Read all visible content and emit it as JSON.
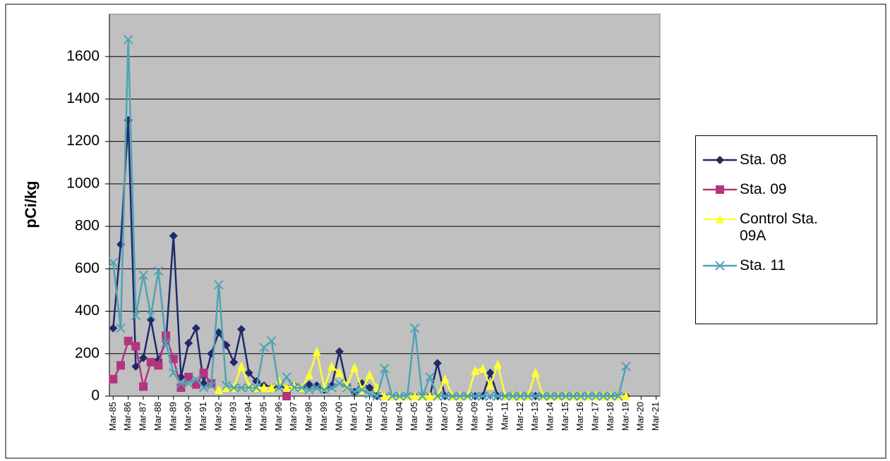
{
  "chart_data": {
    "type": "line",
    "y_label": "pCi/kg",
    "categories": [
      "Mar-85",
      null,
      "Mar-86",
      null,
      "Mar-87",
      null,
      "Mar-88",
      null,
      "Mar-89",
      null,
      "Mar-90",
      null,
      "Mar-91",
      null,
      "Mar-92",
      null,
      "Mar-93",
      null,
      "Mar-94",
      null,
      "Mar-95",
      null,
      "Mar-96",
      null,
      "Mar-97",
      null,
      "Mar-98",
      null,
      "Mar-99",
      null,
      "Mar-00",
      null,
      "Mar-01",
      null,
      "Mar-02",
      null,
      "Mar-03",
      null,
      "Mar-04",
      null,
      "Mar-05",
      null,
      "Mar-06",
      null,
      "Mar-07",
      null,
      "Mar-08",
      null,
      "Mar-09",
      null,
      "Mar-10",
      null,
      "Mar-11",
      null,
      "Mar-12",
      null,
      "Mar-13",
      null,
      "Mar-14",
      null,
      "Mar-15",
      null,
      "Mar-16",
      null,
      "Mar-17",
      null,
      "Mar-18",
      null,
      "Mar-19",
      null,
      "Mar-20",
      null,
      "Mar-21"
    ],
    "series": [
      {
        "name": "Sta. 08",
        "color": "#1f2a6b",
        "marker": "diamond",
        "values": [
          320,
          715,
          1300,
          140,
          180,
          360,
          170,
          260,
          755,
          90,
          250,
          320,
          60,
          200,
          300,
          240,
          160,
          315,
          110,
          70,
          50,
          40,
          50,
          40,
          50,
          40,
          55,
          50,
          30,
          50,
          210,
          50,
          20,
          60,
          40,
          0,
          0,
          0,
          0,
          0,
          0,
          0,
          0,
          155,
          0,
          0,
          0,
          0,
          0,
          0,
          110,
          0,
          0,
          0,
          0,
          0,
          0,
          0,
          0,
          0,
          0,
          0,
          0,
          0,
          0,
          0,
          0,
          0,
          0,
          null,
          null,
          null,
          null
        ]
      },
      {
        "name": "Sta. 09",
        "color": "#b5347f",
        "marker": "square",
        "values": [
          80,
          145,
          260,
          235,
          45,
          160,
          145,
          285,
          175,
          40,
          90,
          55,
          110,
          60,
          null,
          null,
          null,
          null,
          null,
          null,
          null,
          null,
          null,
          0,
          null,
          null,
          null,
          null,
          null,
          null,
          null,
          null,
          null,
          null,
          null,
          null,
          null,
          null,
          null,
          null,
          null,
          null,
          null,
          null,
          null,
          null,
          null,
          null,
          null,
          null,
          null,
          null,
          null,
          null,
          null,
          null,
          null,
          null,
          null,
          null,
          null,
          null,
          null,
          null,
          null,
          null,
          null,
          null,
          null,
          null,
          null,
          null,
          null
        ]
      },
      {
        "name": "Control Sta. 09A",
        "color": "#ffff33",
        "marker": "triangle",
        "values": [
          null,
          null,
          null,
          null,
          null,
          null,
          null,
          null,
          null,
          null,
          null,
          null,
          null,
          null,
          30,
          40,
          40,
          140,
          50,
          40,
          40,
          40,
          70,
          40,
          50,
          40,
          100,
          210,
          40,
          140,
          110,
          50,
          135,
          30,
          100,
          40,
          0,
          0,
          0,
          0,
          0,
          0,
          0,
          0,
          80,
          0,
          0,
          0,
          120,
          130,
          50,
          150,
          0,
          0,
          0,
          0,
          110,
          0,
          0,
          0,
          0,
          0,
          0,
          0,
          0,
          0,
          0,
          0,
          0,
          null,
          null,
          null,
          null
        ]
      },
      {
        "name": "Sta. 11",
        "color": "#4fa3b5",
        "marker": "x",
        "values": [
          630,
          320,
          1680,
          380,
          570,
          380,
          590,
          250,
          110,
          60,
          60,
          80,
          40,
          50,
          525,
          50,
          40,
          40,
          40,
          40,
          230,
          260,
          40,
          90,
          40,
          40,
          30,
          40,
          30,
          40,
          60,
          40,
          20,
          30,
          10,
          0,
          130,
          0,
          0,
          0,
          320,
          0,
          90,
          0,
          0,
          0,
          0,
          0,
          0,
          0,
          0,
          0,
          0,
          0,
          0,
          0,
          0,
          0,
          0,
          0,
          0,
          0,
          0,
          0,
          0,
          0,
          0,
          0,
          140,
          null,
          null,
          null,
          null
        ]
      }
    ],
    "ylim": [
      0,
      1800
    ],
    "yticks": [
      0,
      200,
      400,
      600,
      800,
      1000,
      1200,
      1400,
      1600
    ],
    "grid": true,
    "legend": "right"
  }
}
